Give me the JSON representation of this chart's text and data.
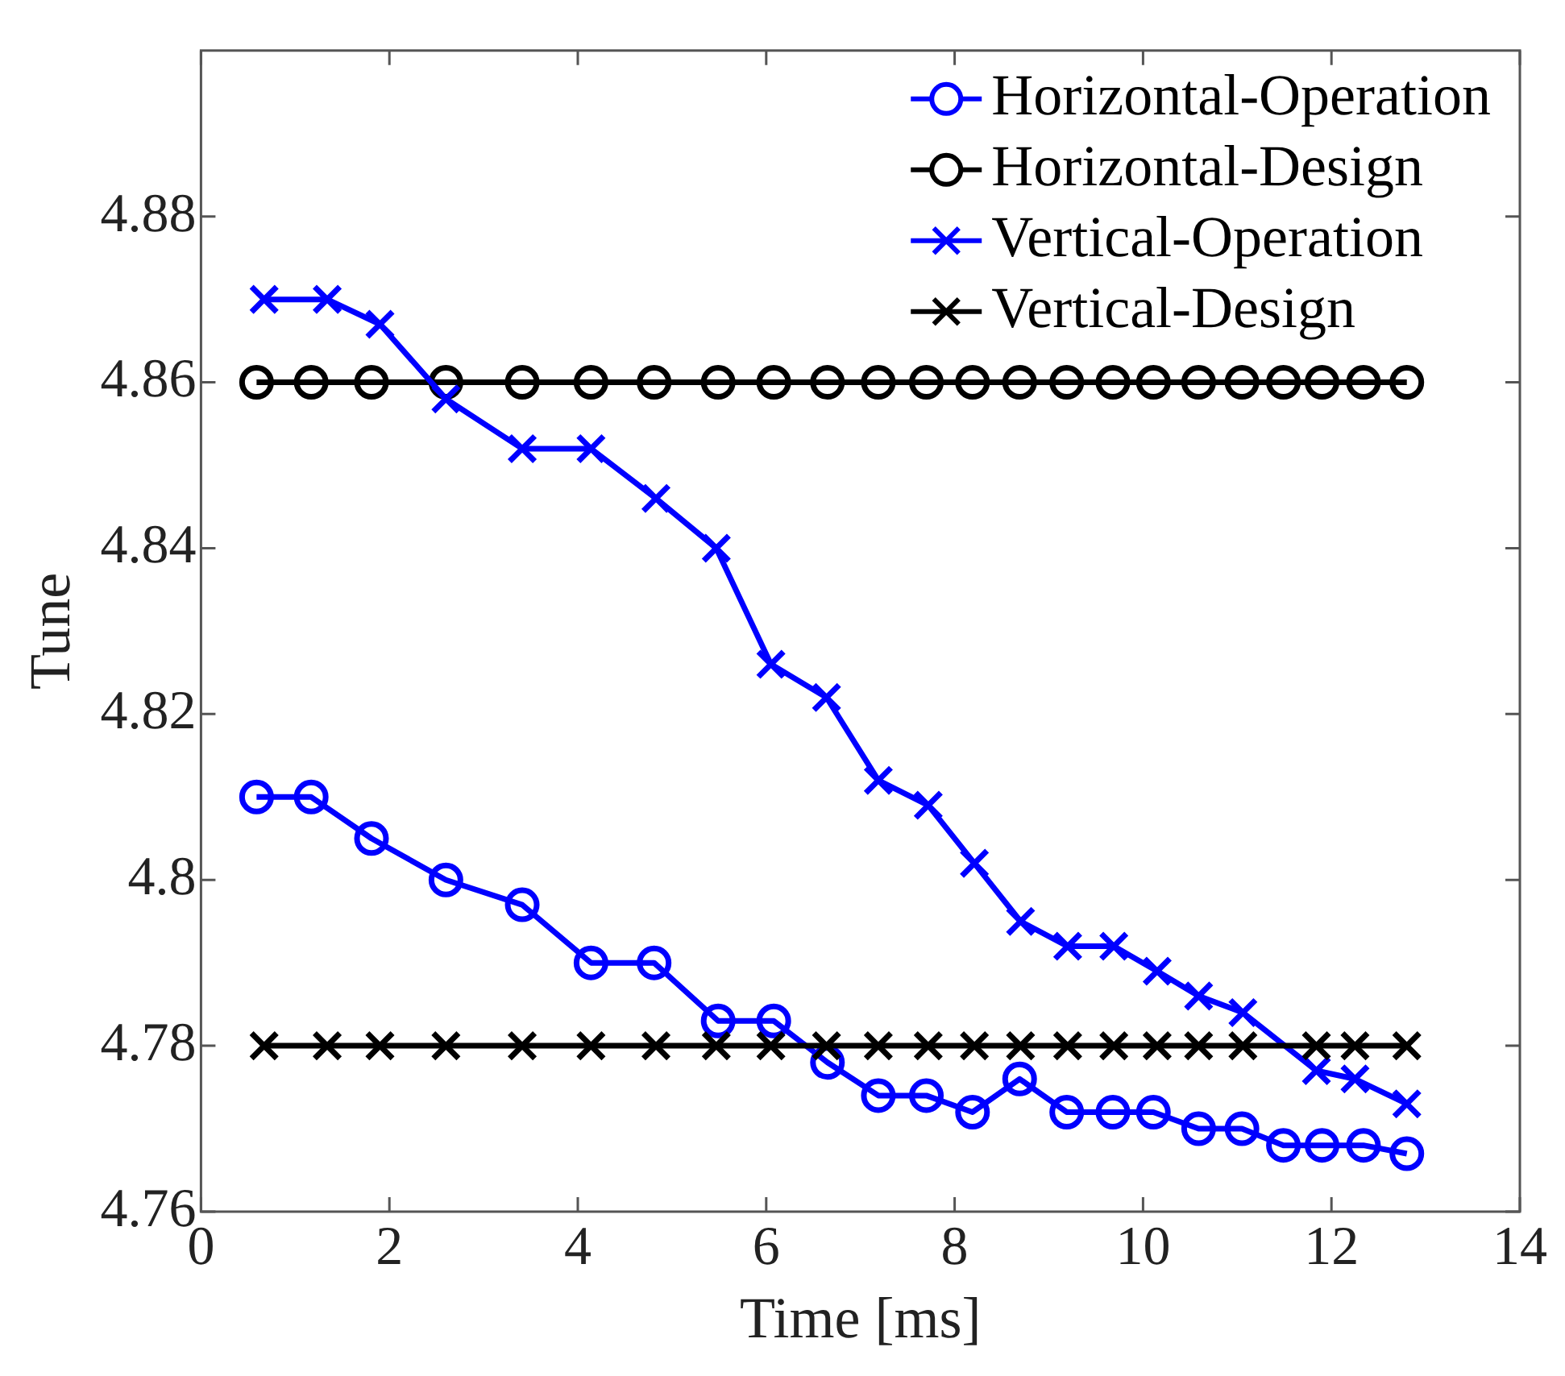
{
  "chart_data": {
    "type": "line",
    "xlabel": "Time [ms]",
    "ylabel": "Tune",
    "xlim": [
      0,
      14
    ],
    "xticks": [
      0,
      2,
      4,
      6,
      8,
      10,
      12,
      14
    ],
    "ylim": [
      4.76,
      4.9
    ],
    "yticks": [
      4.76,
      4.78,
      4.8,
      4.82,
      4.84,
      4.86,
      4.88
    ],
    "grid": false,
    "legend": "top right",
    "line_style": "solid",
    "series": [
      {
        "name": "Horizontal-Operation",
        "color": "#0000ff",
        "marker": "circle",
        "x": [
          0.59,
          1.17,
          1.81,
          2.6,
          3.41,
          4.14,
          4.81,
          5.49,
          6.08,
          6.65,
          7.19,
          7.7,
          8.19,
          8.69,
          9.19,
          9.68,
          10.11,
          10.59,
          11.05,
          11.49,
          11.9,
          12.34,
          12.8
        ],
        "values": [
          4.81,
          4.81,
          4.805,
          4.8,
          4.797,
          4.79,
          4.79,
          4.783,
          4.783,
          4.778,
          4.774,
          4.774,
          4.772,
          4.776,
          4.772,
          4.772,
          4.772,
          4.77,
          4.77,
          4.768,
          4.768,
          4.768,
          4.767
        ]
      },
      {
        "name": "Horizontal-Design",
        "color": "#000000",
        "marker": "circle",
        "x": [
          0.59,
          1.17,
          1.81,
          2.6,
          3.41,
          4.14,
          4.81,
          5.49,
          6.08,
          6.65,
          7.19,
          7.7,
          8.19,
          8.69,
          9.19,
          9.68,
          10.11,
          10.59,
          11.05,
          11.49,
          11.9,
          12.34,
          12.8
        ],
        "values": [
          4.86,
          4.86,
          4.86,
          4.86,
          4.86,
          4.86,
          4.86,
          4.86,
          4.86,
          4.86,
          4.86,
          4.86,
          4.86,
          4.86,
          4.86,
          4.86,
          4.86,
          4.86,
          4.86,
          4.86,
          4.86,
          4.86,
          4.86
        ]
      },
      {
        "name": "Vertical-Operation",
        "color": "#0000ff",
        "marker": "cross",
        "x": [
          0.67,
          1.34,
          1.9,
          2.6,
          3.41,
          4.14,
          4.83,
          5.47,
          6.05,
          6.64,
          7.19,
          7.72,
          8.21,
          8.7,
          9.2,
          9.69,
          10.15,
          10.59,
          11.06,
          11.84,
          12.25,
          12.8
        ],
        "values": [
          4.87,
          4.87,
          4.867,
          4.858,
          4.852,
          4.852,
          4.846,
          4.84,
          4.826,
          4.822,
          4.812,
          4.809,
          4.802,
          4.795,
          4.792,
          4.792,
          4.789,
          4.786,
          4.784,
          4.777,
          4.776,
          4.773
        ]
      },
      {
        "name": "Vertical-Design",
        "color": "#000000",
        "marker": "cross",
        "x": [
          0.67,
          1.34,
          1.9,
          2.6,
          3.41,
          4.14,
          4.83,
          5.47,
          6.05,
          6.64,
          7.19,
          7.72,
          8.21,
          8.7,
          9.2,
          9.69,
          10.15,
          10.59,
          11.06,
          11.84,
          12.25,
          12.8
        ],
        "values": [
          4.78,
          4.78,
          4.78,
          4.78,
          4.78,
          4.78,
          4.78,
          4.78,
          4.78,
          4.78,
          4.78,
          4.78,
          4.78,
          4.78,
          4.78,
          4.78,
          4.78,
          4.78,
          4.78,
          4.78,
          4.78,
          4.78
        ]
      }
    ]
  }
}
